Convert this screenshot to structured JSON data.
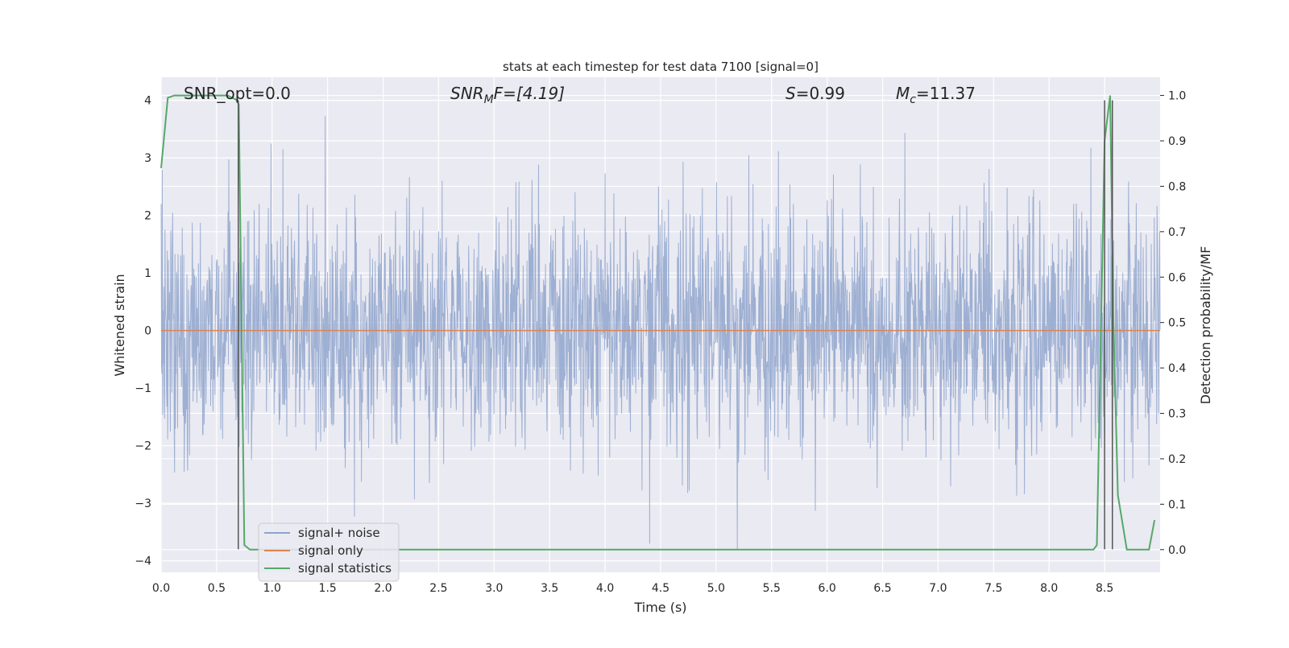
{
  "chart_data": {
    "type": "line",
    "title": "stats at each timestep for test data 7100 [signal=0]",
    "xlabel": "Time (s)",
    "ylabel": "Whitened strain",
    "ylabel_right": "Detection probability/MF",
    "xlim": [
      0.0,
      9.0
    ],
    "ylim": [
      -4.2,
      4.4
    ],
    "ylim_right": [
      -0.05,
      1.04
    ],
    "x_ticks": [
      "0.0",
      "0.5",
      "1.0",
      "1.5",
      "2.0",
      "2.5",
      "3.0",
      "3.5",
      "4.0",
      "4.5",
      "5.0",
      "5.5",
      "6.0",
      "6.5",
      "7.0",
      "7.5",
      "8.0",
      "8.5"
    ],
    "y_ticks": [
      "4",
      "3",
      "2",
      "1",
      "0",
      "−1",
      "−2",
      "−3",
      "−4"
    ],
    "y_ticks_right": [
      "1.0",
      "0.9",
      "0.8",
      "0.7",
      "0.6",
      "0.5",
      "0.4",
      "0.3",
      "0.2",
      "0.1",
      "0.0"
    ],
    "grid": true,
    "legend_position": "lower-left",
    "annotations": {
      "snr_opt": "SNR_opt=0.0",
      "snr_mf_main": "SNR",
      "snr_mf_sub": "M",
      "snr_mf_tail": "F=[4.19]",
      "s_var": "S",
      "s_val": "=0.99",
      "mc_var": "M",
      "mc_sub": "c",
      "mc_val": "=11.37"
    },
    "series": [
      {
        "name": "signal+ noise",
        "color": "#8fa4cc",
        "axis": "left",
        "description_level": "dense noise, approximately within [-3.8, 4.0]"
      },
      {
        "name": "signal only",
        "color": "#dd8452",
        "axis": "left",
        "x": [
          0.0,
          9.0
        ],
        "y": [
          0.0,
          0.0
        ]
      },
      {
        "name": "signal statistics",
        "color": "#55a868",
        "axis": "right",
        "x": [
          0.0,
          0.06,
          0.12,
          0.5,
          0.6,
          0.68,
          0.7,
          0.75,
          0.8,
          1.0,
          2.0,
          3.0,
          4.0,
          5.0,
          6.0,
          7.0,
          8.0,
          8.4,
          8.43,
          8.5,
          8.55,
          8.58,
          8.62,
          8.7,
          8.8,
          8.9,
          8.95
        ],
        "y": [
          0.84,
          0.995,
          1.0,
          1.0,
          1.0,
          0.99,
          0.98,
          0.01,
          0.0,
          0.0,
          0.0,
          0.0,
          0.0,
          0.0,
          0.0,
          0.0,
          0.0,
          0.0,
          0.01,
          0.9,
          1.0,
          0.5,
          0.12,
          0.0,
          0.0,
          0.0,
          0.065
        ]
      }
    ],
    "vlines": [
      {
        "x": 0.695,
        "y_from": -3.8,
        "y_to": 4.0
      },
      {
        "x": 8.5,
        "y_from": -3.8,
        "y_to": 4.0
      },
      {
        "x": 8.57,
        "y_from": -3.8,
        "y_to": 4.0
      }
    ]
  }
}
